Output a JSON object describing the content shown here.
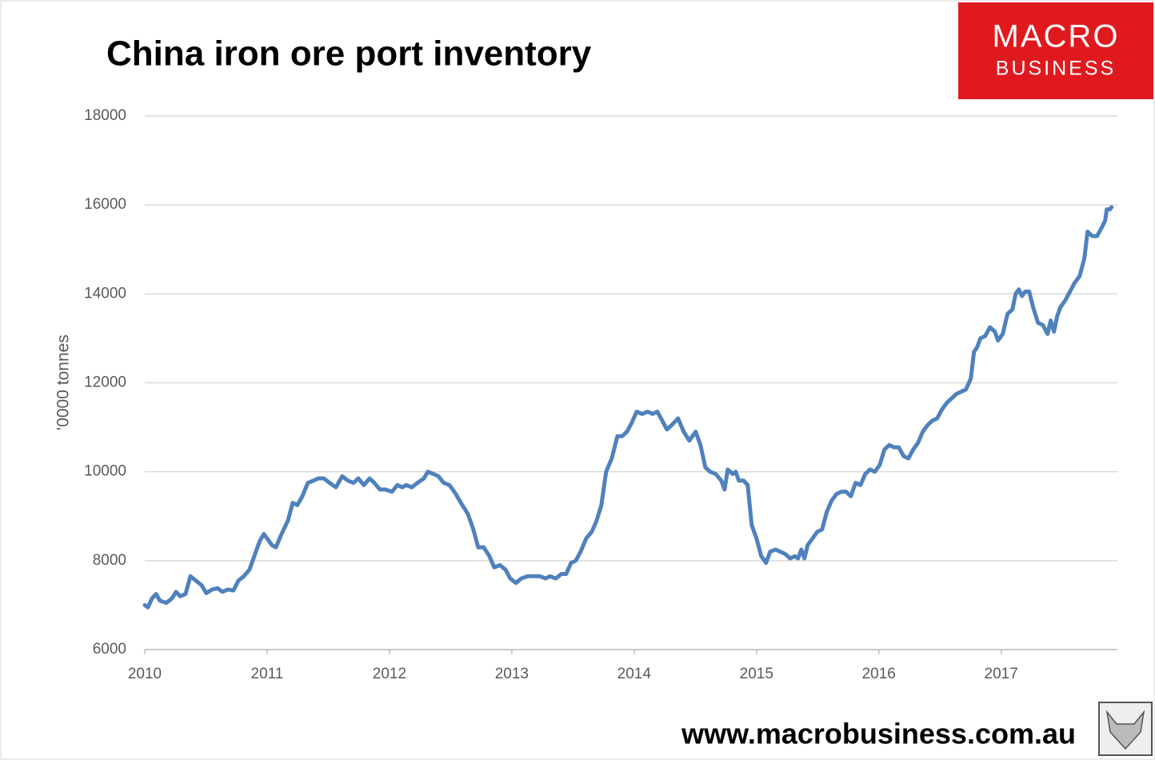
{
  "chart_data": {
    "type": "line",
    "title": "China iron ore port inventory",
    "ylabel": "'0000 tonnes",
    "xlim": [
      2010,
      2017.95
    ],
    "xticks": [
      2010,
      2011,
      2012,
      2013,
      2014,
      2015,
      2016,
      2017
    ],
    "ylim": [
      6000,
      18000
    ],
    "yticks": [
      6000,
      8000,
      10000,
      12000,
      14000,
      16000,
      18000
    ],
    "grid": true,
    "series": [
      {
        "color": "#4f81bd",
        "x": [
          2010,
          2010.026,
          2010.059,
          2010.092,
          2010.124,
          2010.176,
          2010.222,
          2010.255,
          2010.288,
          2010.333,
          2010.373,
          2010.418,
          2010.464,
          2010.503,
          2010.549,
          2010.595,
          2010.634,
          2010.68,
          2010.725,
          2010.765,
          2010.81,
          2010.856,
          2010.895,
          2010.941,
          2010.974,
          2011,
          2011.039,
          2011.072,
          2011.118,
          2011.17,
          2011.209,
          2011.248,
          2011.288,
          2011.333,
          2011.379,
          2011.418,
          2011.464,
          2011.51,
          2011.562,
          2011.614,
          2011.66,
          2011.706,
          2011.745,
          2011.791,
          2011.837,
          2011.876,
          2011.922,
          2011.967,
          2012.02,
          2012.065,
          2012.105,
          2012.137,
          2012.183,
          2012.229,
          2012.281,
          2012.314,
          2012.359,
          2012.399,
          2012.444,
          2012.49,
          2012.542,
          2012.595,
          2012.641,
          2012.686,
          2012.725,
          2012.771,
          2012.817,
          2012.856,
          2012.902,
          2012.948,
          2012.987,
          2013.033,
          2013.078,
          2013.131,
          2013.183,
          2013.229,
          2013.275,
          2013.314,
          2013.359,
          2013.405,
          2013.444,
          2013.484,
          2013.523,
          2013.562,
          2013.608,
          2013.654,
          2013.693,
          2013.732,
          2013.771,
          2013.817,
          2013.863,
          2013.902,
          2013.941,
          2013.98,
          2014.02,
          2014.065,
          2014.111,
          2014.15,
          2014.19,
          2014.229,
          2014.268,
          2014.307,
          2014.359,
          2014.405,
          2014.451,
          2014.503,
          2014.542,
          2014.582,
          2014.621,
          2014.667,
          2014.712,
          2014.739,
          2014.765,
          2014.804,
          2014.83,
          2014.856,
          2014.895,
          2014.928,
          2014.961,
          2015,
          2015.039,
          2015.078,
          2015.111,
          2015.157,
          2015.196,
          2015.235,
          2015.275,
          2015.314,
          2015.34,
          2015.366,
          2015.392,
          2015.418,
          2015.458,
          2015.497,
          2015.536,
          2015.575,
          2015.614,
          2015.654,
          2015.693,
          2015.732,
          2015.771,
          2015.81,
          2015.85,
          2015.889,
          2015.928,
          2015.967,
          2016.007,
          2016.046,
          2016.085,
          2016.124,
          2016.163,
          2016.203,
          2016.242,
          2016.281,
          2016.32,
          2016.359,
          2016.399,
          2016.438,
          2016.477,
          2016.516,
          2016.556,
          2016.595,
          2016.634,
          2016.673,
          2016.712,
          2016.752,
          2016.778,
          2016.804,
          2016.83,
          2016.869,
          2016.908,
          2016.948,
          2016.974,
          2017.013,
          2017.052,
          2017.092,
          2017.118,
          2017.144,
          2017.17,
          2017.196,
          2017.229,
          2017.261,
          2017.301,
          2017.34,
          2017.379,
          2017.405,
          2017.431,
          2017.458,
          2017.484,
          2017.523,
          2017.562,
          2017.601,
          2017.641,
          2017.68,
          2017.706,
          2017.745,
          2017.784,
          2017.824,
          2017.85,
          2017.863,
          2017.889,
          2017.902
        ],
        "values": [
          7000,
          6950,
          7150,
          7250,
          7100,
          7050,
          7150,
          7300,
          7200,
          7250,
          7650,
          7550,
          7450,
          7270,
          7350,
          7380,
          7300,
          7350,
          7330,
          7550,
          7650,
          7800,
          8100,
          8450,
          8600,
          8500,
          8350,
          8300,
          8600,
          8900,
          9300,
          9250,
          9450,
          9750,
          9800,
          9850,
          9850,
          9750,
          9650,
          9900,
          9800,
          9750,
          9850,
          9700,
          9850,
          9750,
          9600,
          9600,
          9550,
          9700,
          9650,
          9700,
          9650,
          9750,
          9850,
          10000,
          9950,
          9900,
          9750,
          9700,
          9500,
          9250,
          9050,
          8700,
          8300,
          8300,
          8100,
          7850,
          7900,
          7800,
          7600,
          7500,
          7600,
          7650,
          7650,
          7650,
          7600,
          7650,
          7600,
          7700,
          7700,
          7950,
          8000,
          8200,
          8500,
          8650,
          8900,
          9250,
          10000,
          10300,
          10800,
          10800,
          10900,
          11100,
          11350,
          11300,
          11350,
          11300,
          11350,
          11150,
          10950,
          11050,
          11200,
          10900,
          10700,
          10900,
          10600,
          10100,
          10000,
          9950,
          9800,
          9600,
          10050,
          9950,
          10000,
          9800,
          9800,
          9700,
          8800,
          8500,
          8100,
          7950,
          8200,
          8250,
          8200,
          8150,
          8050,
          8100,
          8050,
          8250,
          8050,
          8350,
          8500,
          8650,
          8700,
          9100,
          9350,
          9500,
          9550,
          9550,
          9450,
          9750,
          9700,
          9950,
          10050,
          10000,
          10150,
          10500,
          10600,
          10550,
          10550,
          10350,
          10300,
          10500,
          10650,
          10900,
          11050,
          11150,
          11200,
          11400,
          11550,
          11650,
          11750,
          11800,
          11850,
          12100,
          12700,
          12800,
          13000,
          13050,
          13250,
          13150,
          12950,
          13100,
          13550,
          13650,
          14000,
          14100,
          13950,
          14050,
          14050,
          13700,
          13350,
          13300,
          13100,
          13400,
          13150,
          13500,
          13700,
          13850,
          14050,
          14250,
          14400,
          14800,
          15400,
          15300,
          15300,
          15500,
          15650,
          15900,
          15900,
          15950
        ]
      }
    ]
  },
  "logo": {
    "line1": "MACRO",
    "line2": "BUSINESS"
  },
  "footer": "www.macrobusiness.com.au"
}
